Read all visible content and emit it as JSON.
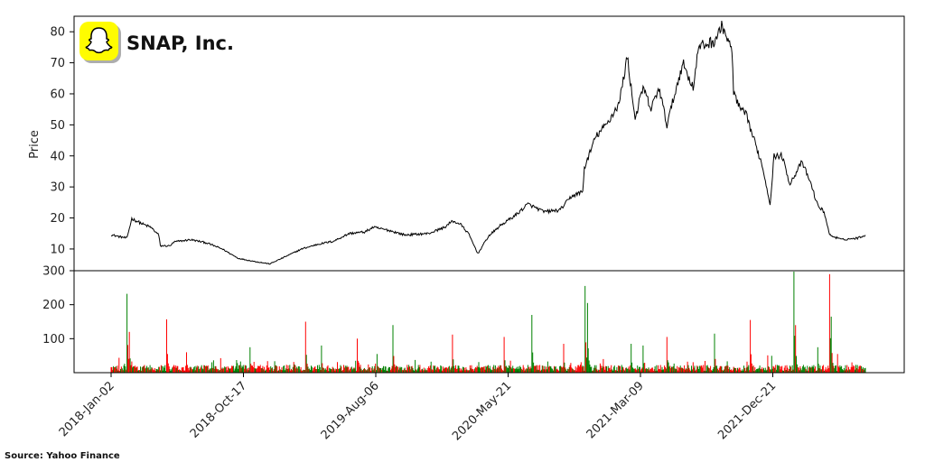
{
  "logo": {
    "title": "SNAP, Inc."
  },
  "source": "Source: Yahoo Finance",
  "colors": {
    "price_line": "#000000",
    "volume_up": "#008000",
    "volume_down": "#ff0000",
    "logo_bg": "#FFFC00"
  },
  "chart_data": [
    {
      "type": "line",
      "ylabel": "Price",
      "ylim": [
        3,
        85
      ],
      "yticks": [
        10,
        20,
        30,
        40,
        50,
        60,
        70,
        80
      ],
      "x_tick_labels": [
        "2018-Jan-02",
        "2018-Oct-17",
        "2019-Aug-06",
        "2020-May-21",
        "2021-Mar-09",
        "2021-Dec-21"
      ],
      "series": [
        {
          "values": [
            [
              0,
              14.6
            ],
            [
              10,
              14.0
            ],
            [
              20,
              13.5
            ],
            [
              26,
              19.8
            ],
            [
              40,
              18.0
            ],
            [
              50,
              17.0
            ],
            [
              60,
              14.5
            ],
            [
              62,
              11.0
            ],
            [
              74,
              11.0
            ],
            [
              80,
              12.3
            ],
            [
              100,
              13.0
            ],
            [
              120,
              12.0
            ],
            [
              140,
              10.0
            ],
            [
              160,
              7.0
            ],
            [
              180,
              6.0
            ],
            [
              200,
              5.2
            ],
            [
              220,
              7.6
            ],
            [
              240,
              10.0
            ],
            [
              260,
              11.5
            ],
            [
              280,
              12.5
            ],
            [
              300,
              15.0
            ],
            [
              320,
              15.5
            ],
            [
              330,
              17.0
            ],
            [
              350,
              16.0
            ],
            [
              370,
              14.5
            ],
            [
              400,
              15.0
            ],
            [
              420,
              17.0
            ],
            [
              430,
              19.0
            ],
            [
              440,
              18.0
            ],
            [
              450,
              15.0
            ],
            [
              462,
              8.5
            ],
            [
              475,
              14.0
            ],
            [
              490,
              17.5
            ],
            [
              510,
              21.0
            ],
            [
              525,
              24.5
            ],
            [
              545,
              22.0
            ],
            [
              565,
              22.5
            ],
            [
              580,
              27.0
            ],
            [
              594,
              28.5
            ],
            [
              596,
              36.0
            ],
            [
              610,
              46.0
            ],
            [
              625,
              50.5
            ],
            [
              640,
              57.0
            ],
            [
              650,
              72.0
            ],
            [
              660,
              52.0
            ],
            [
              670,
              62.0
            ],
            [
              680,
              55.0
            ],
            [
              690,
              62.0
            ],
            [
              700,
              50.0
            ],
            [
              710,
              60.0
            ],
            [
              720,
              70.0
            ],
            [
              733,
              62.0
            ],
            [
              740,
              75.0
            ],
            [
              760,
              77.0
            ],
            [
              770,
              82.0
            ],
            [
              782,
              73.5
            ],
            [
              784,
              61.0
            ],
            [
              790,
              56.0
            ],
            [
              800,
              53.0
            ],
            [
              810,
              45.0
            ],
            [
              820,
              37.0
            ],
            [
              830,
              24.5
            ],
            [
              835,
              40.0
            ],
            [
              845,
              40.0
            ],
            [
              855,
              31.0
            ],
            [
              870,
              38.0
            ],
            [
              880,
              32.0
            ],
            [
              890,
              24.0
            ],
            [
              898,
              22.0
            ],
            [
              905,
              14.5
            ],
            [
              920,
              13.0
            ],
            [
              940,
              13.5
            ],
            [
              950,
              14.5
            ]
          ]
        }
      ]
    },
    {
      "type": "bar",
      "ylabel": "",
      "ylim": [
        0,
        300
      ],
      "yticks": [
        100,
        200,
        300
      ],
      "spikes": [
        {
          "x": 20,
          "value": 232,
          "color": "green"
        },
        {
          "x": 23,
          "value": 120,
          "color": "red"
        },
        {
          "x": 70,
          "value": 157,
          "color": "red"
        },
        {
          "x": 95,
          "value": 60,
          "color": "red"
        },
        {
          "x": 175,
          "value": 75,
          "color": "green"
        },
        {
          "x": 245,
          "value": 150,
          "color": "red"
        },
        {
          "x": 265,
          "value": 80,
          "color": "green"
        },
        {
          "x": 310,
          "value": 100,
          "color": "red"
        },
        {
          "x": 335,
          "value": 55,
          "color": "green"
        },
        {
          "x": 355,
          "value": 140,
          "color": "green"
        },
        {
          "x": 430,
          "value": 112,
          "color": "red"
        },
        {
          "x": 495,
          "value": 105,
          "color": "red"
        },
        {
          "x": 530,
          "value": 170,
          "color": "green"
        },
        {
          "x": 570,
          "value": 85,
          "color": "red"
        },
        {
          "x": 597,
          "value": 255,
          "color": "green"
        },
        {
          "x": 600,
          "value": 205,
          "color": "green"
        },
        {
          "x": 655,
          "value": 85,
          "color": "green"
        },
        {
          "x": 670,
          "value": 80,
          "color": "green"
        },
        {
          "x": 700,
          "value": 105,
          "color": "red"
        },
        {
          "x": 760,
          "value": 115,
          "color": "green"
        },
        {
          "x": 805,
          "value": 155,
          "color": "red"
        },
        {
          "x": 860,
          "value": 310,
          "color": "green"
        },
        {
          "x": 862,
          "value": 140,
          "color": "red"
        },
        {
          "x": 890,
          "value": 75,
          "color": "green"
        },
        {
          "x": 905,
          "value": 290,
          "color": "red"
        },
        {
          "x": 907,
          "value": 165,
          "color": "green"
        },
        {
          "x": 915,
          "value": 55,
          "color": "red"
        }
      ]
    }
  ]
}
